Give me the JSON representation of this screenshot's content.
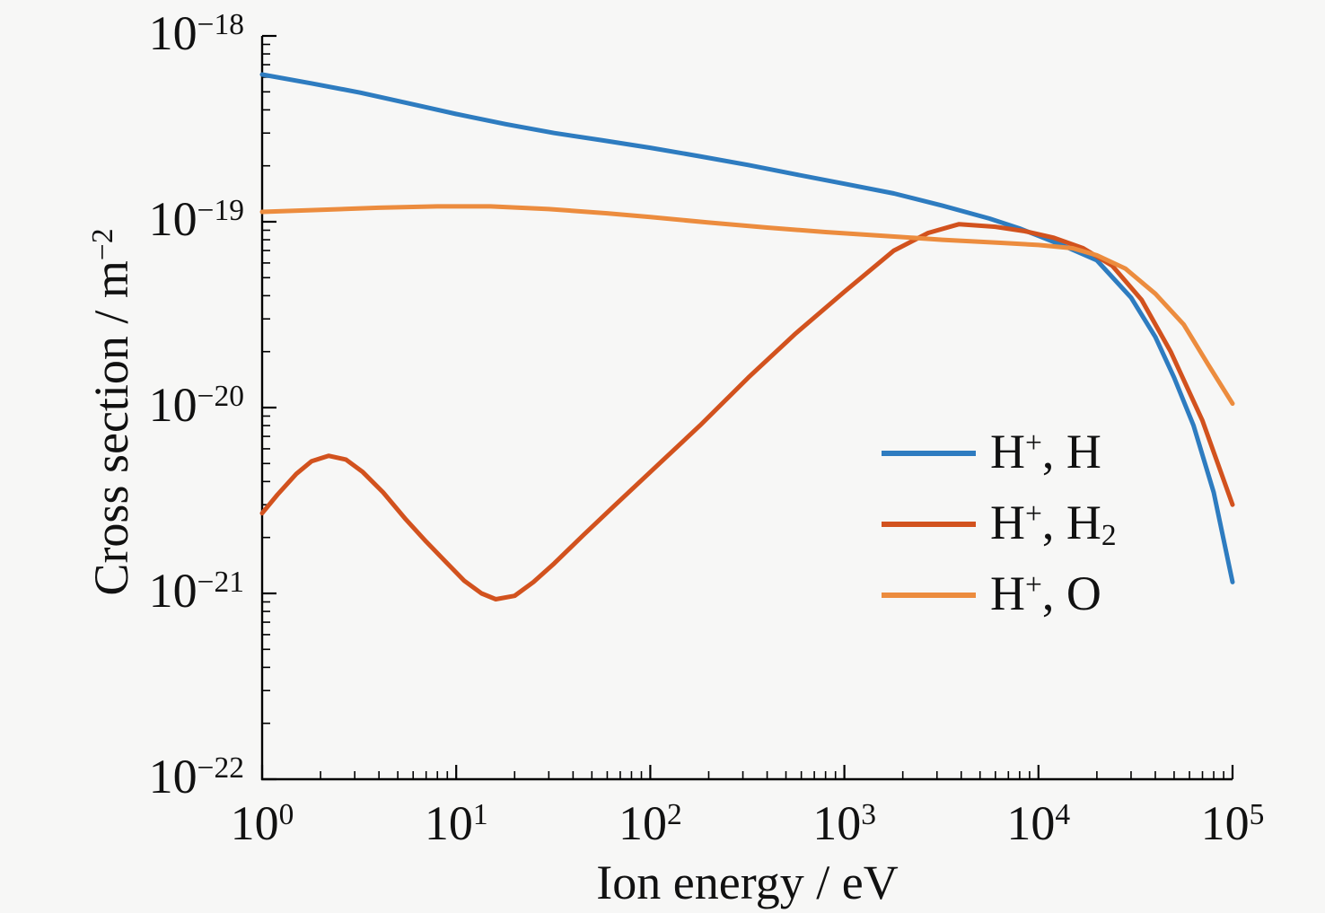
{
  "figure": {
    "background_color": "#f7f7f6",
    "axis_color": "#000000",
    "text_color": "#111111"
  },
  "chart_data": {
    "type": "line",
    "title": "",
    "xlabel": "Ion energy / eV",
    "ylabel": "Cross section / m⁻²",
    "ylabel_segments": [
      {
        "t": "Cross section / m"
      },
      {
        "t": "−2",
        "style": "sup"
      }
    ],
    "x_scale": "log",
    "y_scale": "log",
    "xlim": [
      1,
      100000
    ],
    "ylim": [
      1e-22,
      1e-18
    ],
    "x_log_range": [
      0,
      5
    ],
    "y_log_range": [
      -22,
      -18
    ],
    "x_tick_exponents": [
      0,
      1,
      2,
      3,
      4,
      5
    ],
    "y_tick_exponents": [
      -18,
      -19,
      -20,
      -21,
      -22
    ],
    "grid": false,
    "frame": "left-bottom-only",
    "legend_position": "inside-right-middle",
    "series": [
      {
        "name": "H+, H",
        "slug": "h-plus-h",
        "color": "#2E7CC0",
        "label_segments": [
          {
            "t": "H"
          },
          {
            "t": "+",
            "style": "sup"
          },
          {
            "t": ", H"
          }
        ],
        "points": [
          [
            1,
            6.2e-19
          ],
          [
            1.8,
            5.55e-19
          ],
          [
            3.2,
            4.95e-19
          ],
          [
            5.6,
            4.35e-19
          ],
          [
            10,
            3.8e-19
          ],
          [
            18,
            3.35e-19
          ],
          [
            32,
            3e-19
          ],
          [
            56,
            2.75e-19
          ],
          [
            100,
            2.5e-19
          ],
          [
            180,
            2.25e-19
          ],
          [
            320,
            2.02e-19
          ],
          [
            560,
            1.8e-19
          ],
          [
            1000,
            1.6e-19
          ],
          [
            1800,
            1.42e-19
          ],
          [
            3200,
            1.22e-19
          ],
          [
            5600,
            1.04e-19
          ],
          [
            8000,
            9.2e-20
          ],
          [
            10000,
            8.4e-20
          ],
          [
            14000,
            7.3e-20
          ],
          [
            20000,
            6.2e-20
          ],
          [
            30000,
            3.9e-20
          ],
          [
            40000,
            2.4e-20
          ],
          [
            50000,
            1.45e-20
          ],
          [
            63000,
            8e-21
          ],
          [
            80000,
            3.5e-21
          ],
          [
            100000,
            1.15e-21
          ]
        ]
      },
      {
        "name": "H+, H2",
        "slug": "h-plus-h2",
        "color": "#D2521E",
        "label_segments": [
          {
            "t": "H"
          },
          {
            "t": "+",
            "style": "sup"
          },
          {
            "t": ", H"
          },
          {
            "t": "2",
            "style": "sub"
          }
        ],
        "points": [
          [
            1,
            2.7e-21
          ],
          [
            1.2,
            3.4e-21
          ],
          [
            1.5,
            4.4e-21
          ],
          [
            1.8,
            5.15e-21
          ],
          [
            2.2,
            5.5e-21
          ],
          [
            2.7,
            5.25e-21
          ],
          [
            3.3,
            4.5e-21
          ],
          [
            4.2,
            3.5e-21
          ],
          [
            5.5,
            2.5e-21
          ],
          [
            7,
            1.9e-21
          ],
          [
            9,
            1.45e-21
          ],
          [
            11,
            1.17e-21
          ],
          [
            13.5,
            1e-21
          ],
          [
            16,
            9.3e-22
          ],
          [
            20,
            9.7e-22
          ],
          [
            25,
            1.15e-21
          ],
          [
            32,
            1.45e-21
          ],
          [
            45,
            2.05e-21
          ],
          [
            65,
            2.95e-21
          ],
          [
            100,
            4.5e-21
          ],
          [
            180,
            8e-21
          ],
          [
            320,
            1.45e-20
          ],
          [
            560,
            2.5e-20
          ],
          [
            1000,
            4.2e-20
          ],
          [
            1800,
            7e-20
          ],
          [
            2700,
            8.7e-20
          ],
          [
            3900,
            9.7e-20
          ],
          [
            6000,
            9.4e-20
          ],
          [
            8500,
            8.9e-20
          ],
          [
            12000,
            8.2e-20
          ],
          [
            17000,
            7.2e-20
          ],
          [
            24000,
            5.8e-20
          ],
          [
            34000,
            3.8e-20
          ],
          [
            48000,
            2e-20
          ],
          [
            70000,
            8.5e-21
          ],
          [
            100000,
            3e-21
          ]
        ]
      },
      {
        "name": "H+, O",
        "slug": "h-plus-o",
        "color": "#EC8C3E",
        "label_segments": [
          {
            "t": "H"
          },
          {
            "t": "+",
            "style": "sup"
          },
          {
            "t": ", O"
          }
        ],
        "points": [
          [
            1,
            1.13e-19
          ],
          [
            2,
            1.16e-19
          ],
          [
            4,
            1.19e-19
          ],
          [
            8,
            1.21e-19
          ],
          [
            15,
            1.21e-19
          ],
          [
            30,
            1.17e-19
          ],
          [
            60,
            1.11e-19
          ],
          [
            100,
            1.06e-19
          ],
          [
            200,
            9.9e-20
          ],
          [
            400,
            9.3e-20
          ],
          [
            800,
            8.8e-20
          ],
          [
            1600,
            8.4e-20
          ],
          [
            3200,
            8e-20
          ],
          [
            6400,
            7.7e-20
          ],
          [
            10000,
            7.5e-20
          ],
          [
            15000,
            7.2e-20
          ],
          [
            20000,
            6.6e-20
          ],
          [
            28000,
            5.6e-20
          ],
          [
            40000,
            4.1e-20
          ],
          [
            56000,
            2.8e-20
          ],
          [
            75000,
            1.7e-20
          ],
          [
            100000,
            1.05e-20
          ]
        ]
      }
    ]
  }
}
